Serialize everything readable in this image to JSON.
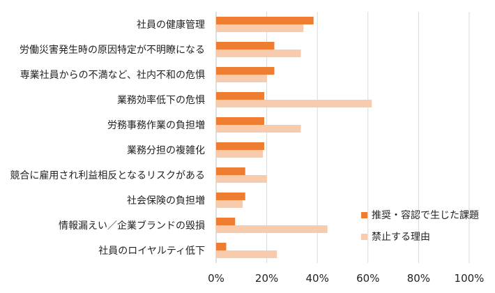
{
  "chart_data": {
    "type": "bar",
    "orientation": "horizontal",
    "categories": [
      "社員の健康管理",
      "労働災害発生時の原因特定が不明瞭になる",
      "専業社員からの不満など、社内不和の危惧",
      "業務効率低下の危惧",
      "労務事務作業の負担増",
      "業務分担の複雑化",
      "競合に雇用され利益相反となるリスクがある",
      "社会保険の負担増",
      "情報漏えい／企業ブランドの毀損",
      "社員のロイヤルティ低下"
    ],
    "series": [
      {
        "name": "推奨・容認で生じた課題",
        "color": "#ED7D31",
        "values": [
          38.5,
          23,
          23,
          19,
          19,
          19,
          11.5,
          11.5,
          7.5,
          4
        ]
      },
      {
        "name": "禁止する理由",
        "color": "#F8CBAD",
        "values": [
          34.5,
          33.5,
          20,
          61.5,
          33.5,
          18.5,
          20,
          10.5,
          44,
          24
        ]
      }
    ],
    "xlim": [
      0,
      100
    ],
    "xticks": [
      "0%",
      "20%",
      "40%",
      "60%",
      "80%",
      "100%"
    ],
    "grid": true,
    "legend_position": "bottom-right"
  },
  "chart_title": "",
  "x_axis_label": "",
  "y_axis_label": ""
}
